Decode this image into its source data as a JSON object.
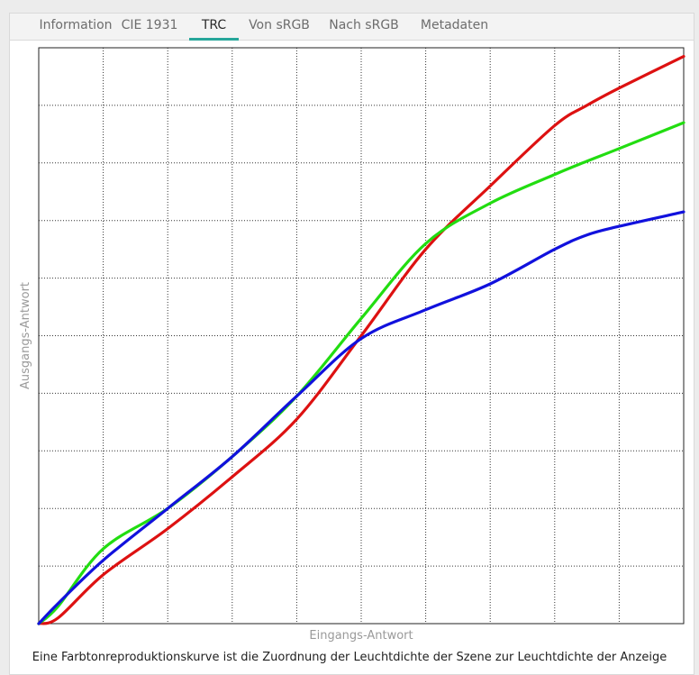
{
  "tabs": [
    {
      "label": "Information",
      "active": false
    },
    {
      "label": "CIE 1931",
      "active": false
    },
    {
      "label": "TRC",
      "active": true
    },
    {
      "label": "Von sRGB",
      "active": false
    },
    {
      "label": "Nach sRGB",
      "active": false
    },
    {
      "label": "Metadaten",
      "active": false
    }
  ],
  "colors": {
    "accent": "#26a69a",
    "red": "#dd1111",
    "green": "#22dd11",
    "blue": "#1111dd",
    "grid": "#333333"
  },
  "chart_data": {
    "type": "line",
    "title": "Eine Farbtonreproduktionskurve ist die Zuordnung der Leuchtdichte der Szene zur Leuchtdichte der Anzeige",
    "xlabel": "Eingangs-Antwort",
    "ylabel": "Ausgangs-Antwort",
    "xlim": [
      0,
      1
    ],
    "ylim": [
      0,
      1
    ],
    "grid": true,
    "grid_style": "dotted",
    "legend": "none",
    "series": [
      {
        "color": "#dd1111",
        "x": [
          0,
          0.03,
          0.1,
          0.2,
          0.3,
          0.4,
          0.5,
          0.6,
          0.7,
          0.8,
          0.85,
          0.9,
          1.0
        ],
        "y": [
          0,
          0.01,
          0.085,
          0.165,
          0.255,
          0.355,
          0.5,
          0.65,
          0.76,
          0.865,
          0.9,
          0.93,
          0.985
        ]
      },
      {
        "color": "#22dd11",
        "x": [
          0,
          0.03,
          0.1,
          0.2,
          0.3,
          0.4,
          0.5,
          0.6,
          0.7,
          0.8,
          0.85,
          0.9,
          1.0
        ],
        "y": [
          0,
          0.03,
          0.13,
          0.2,
          0.29,
          0.395,
          0.53,
          0.66,
          0.73,
          0.78,
          0.803,
          0.825,
          0.87
        ]
      },
      {
        "color": "#1111dd",
        "x": [
          0,
          0.03,
          0.1,
          0.2,
          0.3,
          0.4,
          0.5,
          0.6,
          0.7,
          0.8,
          0.85,
          0.9,
          1.0
        ],
        "y": [
          0,
          0.035,
          0.11,
          0.2,
          0.29,
          0.395,
          0.495,
          0.545,
          0.59,
          0.65,
          0.675,
          0.69,
          0.715
        ]
      }
    ]
  }
}
